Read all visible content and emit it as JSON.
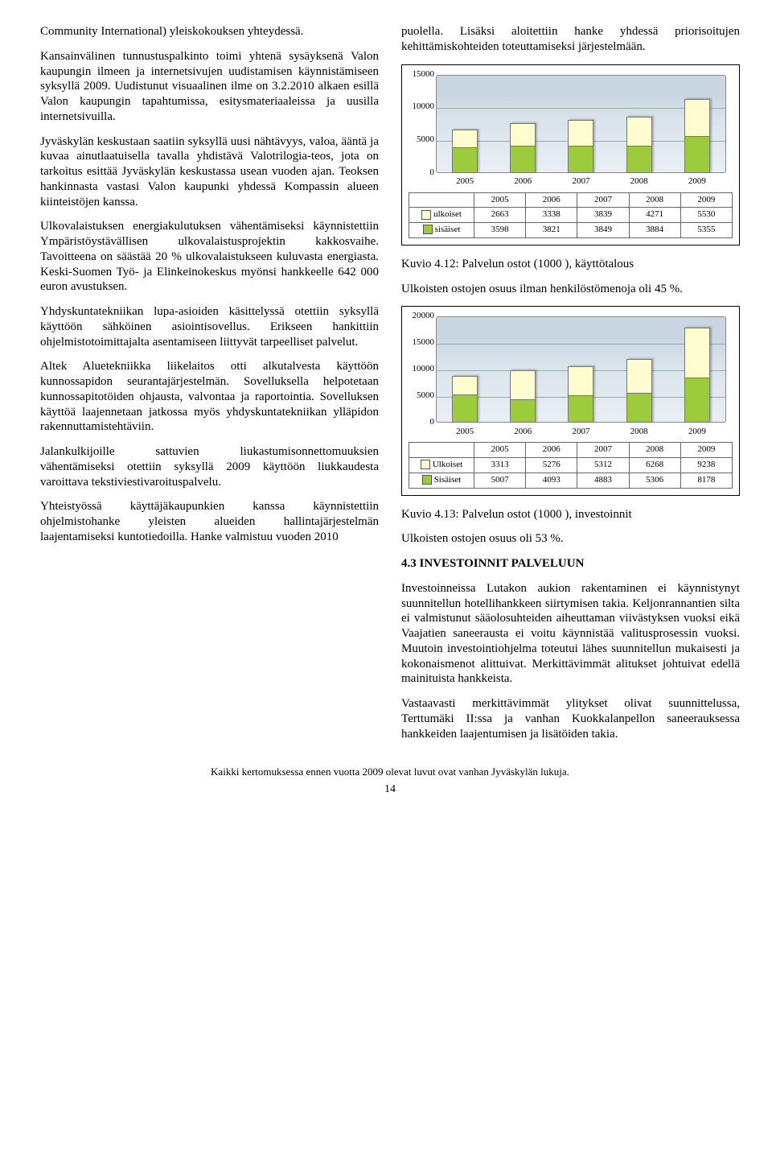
{
  "left": {
    "p1": "Community International) yleiskokouksen yhteydessä.",
    "p2": "Kansainvälinen tunnustuspalkinto toimi yhtenä sysäyksenä Valon kaupungin ilmeen ja internetsivujen uudistamisen käynnistämiseen syksyllä 2009. Uudistunut visuaalinen ilme on 3.2.2010 alkaen esillä Valon kaupungin tapahtumissa, esitysmateriaaleissa ja uusilla internetsivuilla.",
    "p3": "Jyväskylän keskustaan saatiin syksyllä uusi nähtävyys, valoa, ääntä ja kuvaa ainutlaatuisella tavalla yhdistävä Valotrilogia-teos, jota on tarkoitus esittää Jyväskylän keskustassa usean vuoden ajan. Teoksen hankinnasta vastasi Valon kaupunki yhdessä Kompassin alueen kiinteistöjen kanssa.",
    "p4": "Ulkovalaistuksen energiakulutuksen vähentämiseksi käynnistettiin Ympäristöystävällisen ulkovalaistusprojektin kakkosvaihe. Tavoitteena on säästää 20 % ulkovalaistukseen kuluvasta energiasta. Keski-Suomen Työ- ja Elinkeinokeskus myönsi hankkeelle 642 000 euron avustuksen.",
    "p5": "Yhdyskuntatekniikan lupa-asioiden käsittelyssä otettiin syksyllä käyttöön sähköinen asiointisovellus. Erikseen hankittiin ohjelmistotoimittajalta asentamiseen liittyvät tarpeelliset palvelut.",
    "p6": "Altek Aluetekniikka liikelaitos otti alkutalvesta käyttöön kunnossapidon seurantajärjestelmän. Sovelluksella helpotetaan kunnossapitotöiden ohjausta, valvontaa ja raportointia. Sovelluksen käyttöä laajennetaan jatkossa myös yhdyskuntatekniikan ylläpidon rakennuttamistehtäviin.",
    "p7": "Jalankulkijoille sattuvien liukastumisonnettomuuksien vähentämiseksi otettiin syksyllä 2009 käyttöön liukkaudesta varoittava tekstiviestivaroituspalvelu.",
    "p8": "Yhteistyössä käyttäjäkaupunkien kanssa käynnistettiin ohjelmistohanke yleisten alueiden hallintajärjestelmän laajentamiseksi kuntotiedoilla. Hanke valmistuu vuoden 2010"
  },
  "right": {
    "p1": "puolella. Lisäksi aloitettiin hanke yhdessä priorisoitujen kehittämiskohteiden toteuttamiseksi järjestelmään.",
    "cap1": "Kuvio 4.12: Palvelun ostot (1000 ), käyttötalous",
    "p2": "Ulkoisten ostojen osuus ilman henkilöstömenoja oli 45 %.",
    "cap2": "Kuvio 4.13: Palvelun ostot (1000 ), investoinnit",
    "p3": "Ulkoisten ostojen osuus oli 53 %.",
    "sec": "4.3   INVESTOINNIT PALVELUUN",
    "p4": "Investoinneissa Lutakon aukion rakentaminen ei käynnistynyt suunnitellun hotellihankkeen siirtymisen takia.  Keljonrannantien silta ei valmistunut sääolosuhteiden aiheuttaman viivästyksen vuoksi eikä Vaajatien saneerausta ei voitu käynnistää valitusprosessin vuoksi. Muutoin investointiohjelma toteutui lähes suunnitellun mukaisesti ja kokonaismenot alittuivat. Merkittävimmät alitukset johtuivat edellä mainituista hankkeista.",
    "p5": "Vastaavasti merkittävimmät ylitykset olivat suunnittelussa, Terttumäki II:ssa ja vanhan Kuokkalanpellon saneerauksessa hankkeiden laajentumisen ja lisätöiden takia."
  },
  "chart1": {
    "type": "stacked-bar",
    "ymax": 15000,
    "yticks": [
      0,
      5000,
      10000,
      15000
    ],
    "categories": [
      "2005",
      "2006",
      "2007",
      "2008",
      "2009"
    ],
    "series": {
      "ulkoiset": {
        "label": "ulkoiset",
        "color": "#fffdcf",
        "values": [
          2663,
          3338,
          3839,
          4271,
          5530
        ]
      },
      "sisaiset": {
        "label": "sisäiset",
        "color": "#9ccc3c",
        "values": [
          3598,
          3821,
          3849,
          3884,
          5355
        ]
      }
    }
  },
  "chart2": {
    "type": "stacked-bar",
    "ymax": 20000,
    "yticks": [
      0,
      5000,
      10000,
      15000,
      20000
    ],
    "categories": [
      "2005",
      "2006",
      "2007",
      "2008",
      "2009"
    ],
    "series": {
      "ulkoiset": {
        "label": "Ulkoiset",
        "color": "#fffdcf",
        "values": [
          3313,
          5276,
          5312,
          6268,
          9238
        ]
      },
      "sisaiset": {
        "label": "Sisäiset",
        "color": "#9ccc3c",
        "values": [
          5007,
          4093,
          4883,
          5306,
          8178
        ]
      }
    }
  },
  "footer": "Kaikki kertomuksessa ennen vuotta 2009 olevat luvut ovat vanhan Jyväskylän lukuja.",
  "pagenum": "14"
}
